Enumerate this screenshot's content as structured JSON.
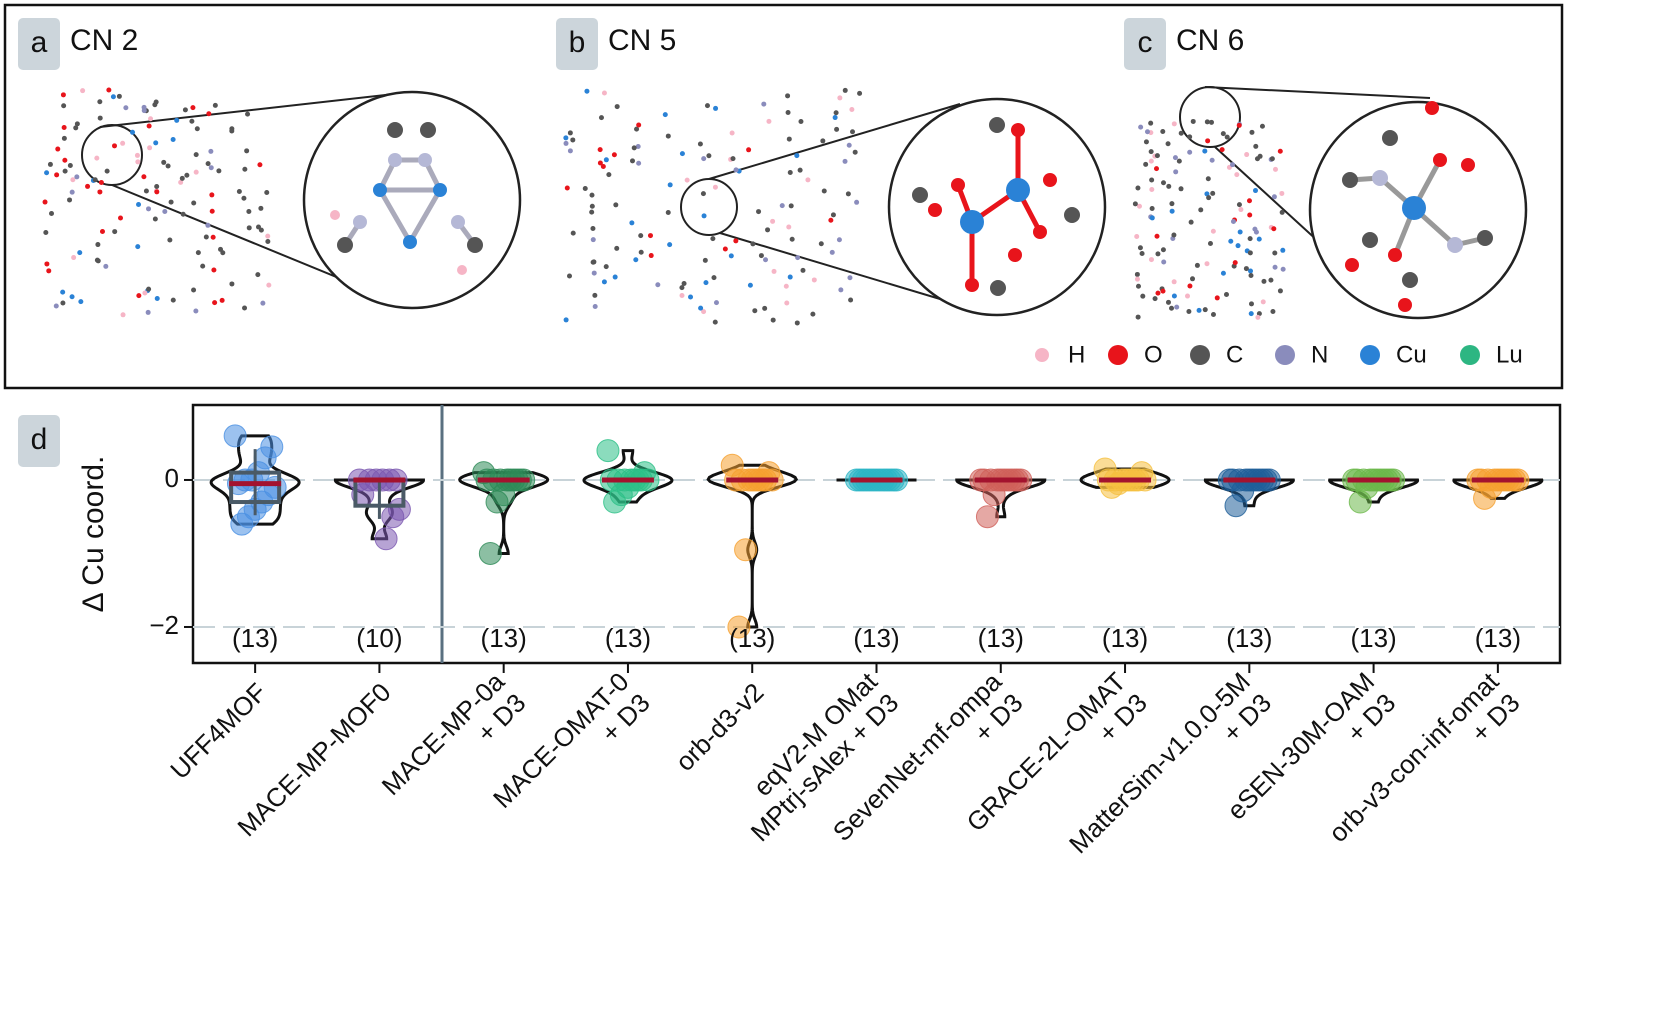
{
  "panels": [
    {
      "letter": "a",
      "title": "CN 2"
    },
    {
      "letter": "b",
      "title": "CN 5"
    },
    {
      "letter": "c",
      "title": "CN 6"
    }
  ],
  "elements": [
    {
      "label": "H",
      "color": "#f6b5c6"
    },
    {
      "label": "O",
      "color": "#e8141b"
    },
    {
      "label": "C",
      "color": "#555555"
    },
    {
      "label": "N",
      "color": "#8a8cbc"
    },
    {
      "label": "Cu",
      "color": "#2a82d6"
    },
    {
      "label": "Lu",
      "color": "#2db682"
    }
  ],
  "chart_data": {
    "type": "violin",
    "panel_letter": "d",
    "y_label": "Δ Cu coord.",
    "ylim": [
      -2.49,
      1.02
    ],
    "yticks": [
      0,
      {
        "value": -2,
        "label": "−2"
      }
    ],
    "grid": true,
    "median_color": "#a3132e",
    "categories": [
      "UFF4MOF",
      "MACE-MP-MOF0",
      "MACE-MP-0a\n+ D3",
      "MACE-OMAT-0\n+ D3",
      "orb-d3-v2",
      "eqV2-M OMat\nMPtrj-sAlex + D3",
      "SevenNet-mf-ompa\n+ D3",
      "GRACE-2L-OMAT\n+ D3",
      "MatterSim-v1.0.0-5M\n+ D3",
      "eSEN-30M-OAM\n+ D3",
      "orb-v3-con-inf-omat\n+ D3"
    ],
    "count_labels": [
      "(13)",
      "(10)",
      "(13)",
      "(13)",
      "(13)",
      "(13)",
      "(13)",
      "(13)",
      "(13)",
      "(13)",
      "(13)"
    ],
    "groups": [
      {
        "color": "#4a90e2",
        "box": true,
        "values": [
          0.6,
          0.45,
          0.3,
          0.1,
          0,
          0,
          -0.05,
          -0.1,
          -0.2,
          -0.3,
          -0.4,
          -0.5,
          -0.6
        ]
      },
      {
        "color": "#7b58b0",
        "box": true,
        "values": [
          0,
          0,
          0,
          0,
          0,
          0,
          -0.2,
          -0.4,
          -0.5,
          -0.8
        ]
      },
      {
        "color": "#2e8b57",
        "values": [
          0.1,
          0,
          0,
          0,
          0,
          0,
          0,
          0,
          0,
          0,
          -0.2,
          -0.3,
          -1.0
        ]
      },
      {
        "color": "#2bbf86",
        "values": [
          0.4,
          0.1,
          0,
          0,
          0,
          0,
          0,
          0,
          0,
          0,
          -0.1,
          -0.2,
          -0.3
        ]
      },
      {
        "color": "#f5a030",
        "values": [
          0.2,
          0.1,
          0,
          0,
          0,
          0,
          0,
          0,
          0,
          0,
          0,
          -0.95,
          -2.0
        ]
      },
      {
        "color": "#2bb5c5",
        "values": [
          0,
          0,
          0,
          0,
          0,
          0,
          0,
          0,
          0,
          0,
          0,
          0,
          0
        ]
      },
      {
        "color": "#d0605a",
        "values": [
          0,
          0,
          0,
          0,
          0,
          0,
          0,
          0,
          0,
          0,
          0,
          -0.2,
          -0.5
        ]
      },
      {
        "color": "#f5c040",
        "values": [
          0.15,
          0.1,
          0,
          0,
          0,
          0,
          0,
          0,
          0,
          0,
          0,
          -0.05,
          -0.1
        ]
      },
      {
        "color": "#1f5f99",
        "values": [
          0,
          0,
          0,
          0,
          0,
          0,
          0,
          0,
          0,
          0,
          0,
          -0.15,
          -0.35
        ]
      },
      {
        "color": "#6cb84a",
        "values": [
          0,
          0,
          0,
          0,
          0,
          0,
          0,
          0,
          0,
          0,
          0,
          -0.1,
          -0.3
        ]
      },
      {
        "color": "#f5a030",
        "values": [
          0,
          0,
          0,
          0,
          0,
          0,
          0,
          0,
          0,
          0,
          0,
          -0.1,
          -0.25
        ]
      }
    ]
  }
}
